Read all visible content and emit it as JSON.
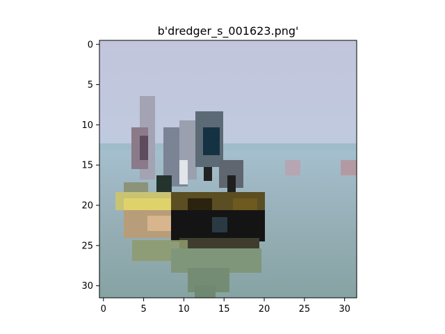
{
  "figure": {
    "title": "b'dredger_s_001623.png'"
  },
  "image": {
    "description": "pixelated 32x32 photo",
    "colors": {
      "sky": "#c4c8dd",
      "horizon": "#a8c0cf",
      "water": "#8ea8ad",
      "hull-yellow": "#d8cc67",
      "hull-dark": "#181818",
      "structure": "#6e7787",
      "reflection": "#8ca17f"
    }
  },
  "axes": {
    "x": {
      "ticks": [
        "0",
        "5",
        "10",
        "15",
        "20",
        "25",
        "30"
      ]
    },
    "y": {
      "ticks": [
        "0",
        "5",
        "10",
        "15",
        "20",
        "25",
        "30"
      ]
    }
  }
}
